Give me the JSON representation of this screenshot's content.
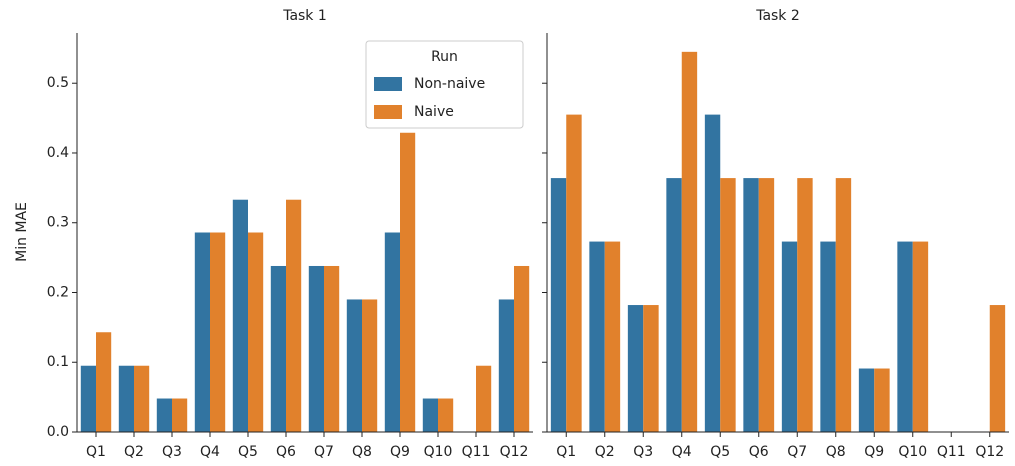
{
  "chart_data": {
    "type": "bar",
    "ylabel": "Min MAE",
    "legend_title": "Run",
    "legend": "upper right",
    "series": [
      {
        "name": "Non-naive",
        "color": "#3274a1"
      },
      {
        "name": "Naive",
        "color": "#e1812c"
      }
    ],
    "ylim": [
      0,
      0.572
    ],
    "yticks": [
      {
        "value": 0,
        "label": "0.0"
      },
      0.1,
      0.2,
      0.3,
      0.4,
      0.5
    ],
    "panels": [
      {
        "title": "Task 1",
        "categories": [
          "Q1",
          "Q2",
          "Q3",
          "Q4",
          "Q5",
          "Q6",
          "Q7",
          "Q8",
          "Q9",
          "Q10",
          "Q11",
          "Q12"
        ],
        "series": [
          {
            "values": [
              0.095,
              0.095,
              0.048,
              0.286,
              0.333,
              0.238,
              0.238,
              0.19,
              0.286,
              0.048,
              0,
              0.19
            ]
          },
          {
            "values": [
              0.143,
              0.095,
              0.048,
              0.286,
              0.286,
              0.333,
              0.238,
              0.19,
              0.429,
              0.048,
              0.095,
              0.238
            ]
          }
        ]
      },
      {
        "title": "Task 2",
        "categories": [
          "Q1",
          "Q2",
          "Q3",
          "Q4",
          "Q5",
          "Q6",
          "Q7",
          "Q8",
          "Q9",
          "Q10",
          "Q11",
          "Q12"
        ],
        "series": [
          {
            "values": [
              0.364,
              0.273,
              0.182,
              0.364,
              0.455,
              0.364,
              0.273,
              0.273,
              0.091,
              0.273,
              0,
              0
            ]
          },
          {
            "values": [
              0.455,
              0.273,
              0.182,
              0.545,
              0.364,
              0.364,
              0.364,
              0.364,
              0.091,
              0.273,
              0,
              0.182
            ]
          }
        ]
      }
    ]
  }
}
